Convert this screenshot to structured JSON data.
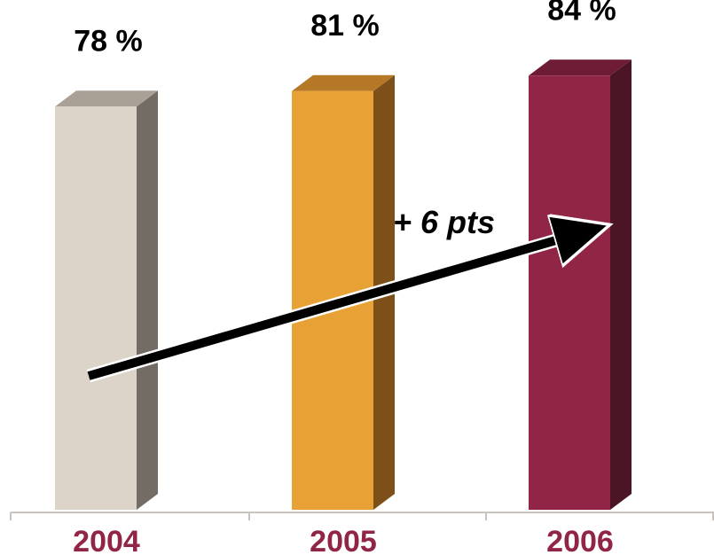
{
  "chart_data": {
    "type": "bar",
    "categories": [
      "2004",
      "2005",
      "2006"
    ],
    "values": [
      78,
      81,
      84
    ],
    "value_labels": [
      "78 %",
      "81 %",
      "84 %"
    ],
    "ylim": [
      0,
      100
    ],
    "grid": false,
    "legend": "none",
    "annotation": {
      "text": "+ 6 pts",
      "from_category": "2004",
      "to_category": "2006"
    },
    "colors": {
      "bars": [
        "#dcd4c8",
        "#e8a134",
        "#912545"
      ],
      "bar_sides": [
        "#736c64",
        "#7d5019",
        "#4b1525"
      ],
      "bar_tops": [
        "#a9a196",
        "#b57827",
        "#6e1b35"
      ],
      "category_labels": "#912545",
      "axis": "#c8c4bd",
      "arrow": "#000000",
      "arrow_outline": "#ffffff"
    }
  }
}
